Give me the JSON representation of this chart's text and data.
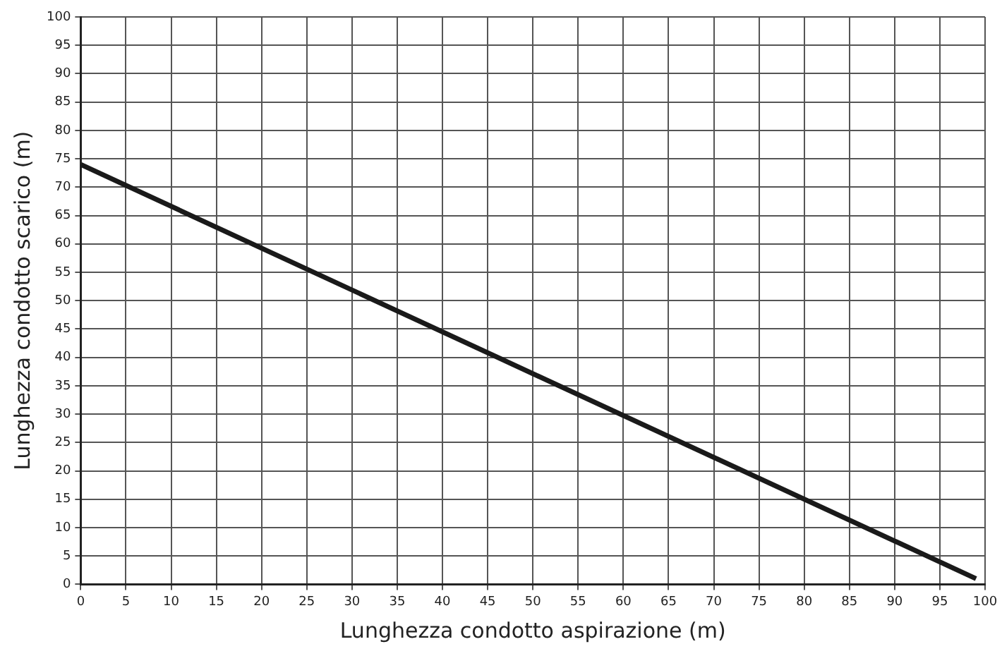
{
  "chart_data": {
    "type": "line",
    "xlabel": "Lunghezza condotto aspirazione (m)",
    "ylabel": "Lunghezza condotto scarico (m)",
    "x": [
      0,
      99
    ],
    "series": [
      {
        "color": "#1a1a1a",
        "values": [
          74,
          1
        ]
      }
    ],
    "xlim": [
      0,
      100
    ],
    "xticks": [
      0,
      5,
      10,
      15,
      20,
      25,
      30,
      35,
      40,
      45,
      50,
      55,
      60,
      65,
      70,
      75,
      80,
      85,
      90,
      95,
      100
    ],
    "ylim": [
      0,
      100
    ],
    "yticks": [
      0,
      5,
      10,
      15,
      20,
      25,
      30,
      35,
      40,
      45,
      50,
      55,
      60,
      65,
      70,
      75,
      80,
      85,
      90,
      95,
      100
    ],
    "grid": true,
    "legend": false,
    "marker": "none",
    "line_style": "solid"
  }
}
